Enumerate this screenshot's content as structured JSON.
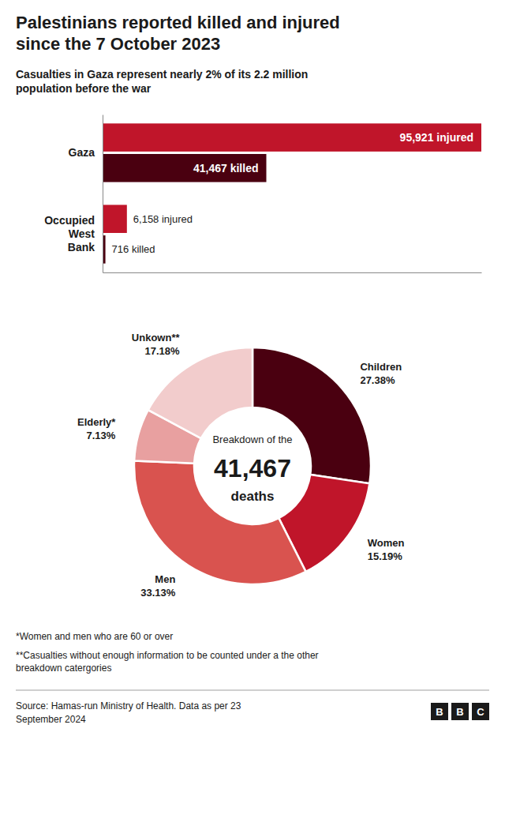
{
  "chart_data": [
    {
      "type": "bar",
      "title": "Palestinians reported killed and injured\nsince the 7 October 2023",
      "subtitle": "Casualties in Gaza represent nearly 2% of its 2.2 million\npopulation before the war",
      "orientation": "horizontal",
      "categories": [
        "Gaza",
        "Occupied\nWest\nBank"
      ],
      "series": [
        {
          "color": "#c0152a",
          "values": [
            95921,
            6158
          ],
          "value_labels": [
            "95,921 injured",
            "6,158 injured"
          ]
        },
        {
          "color": "#4a0010",
          "values": [
            41467,
            716
          ],
          "value_labels": [
            "41,467 killed",
            "716 killed"
          ]
        }
      ],
      "xlim": [
        0,
        95921
      ],
      "tick_labels": "y",
      "data_labels": true
    },
    {
      "type": "donut",
      "categories": [
        "Children",
        "Women",
        "Men",
        "Elderly*",
        "Unkown**"
      ],
      "values": [
        27.38,
        15.19,
        33.13,
        7.13,
        17.18
      ],
      "value_labels": [
        "27.38%",
        "15.19%",
        "33.13%",
        "7.13%",
        "17.18%"
      ],
      "colors": [
        "#4a0010",
        "#c0152a",
        "#d9534f",
        "#e8a0a0",
        "#f2cccc"
      ],
      "data_labels": true,
      "annotations": [
        "Breakdown of the",
        "41,467",
        "deaths"
      ],
      "notes": [
        "*Women and men who are 60 or over",
        "**Casualties without enough information to be counted under a the other\nbreakdown catergories"
      ],
      "source": "Source: Hamas-run Ministry of Health. Data as per 23\nSeptember 2024",
      "logo": [
        "B",
        "B",
        "C"
      ]
    }
  ]
}
